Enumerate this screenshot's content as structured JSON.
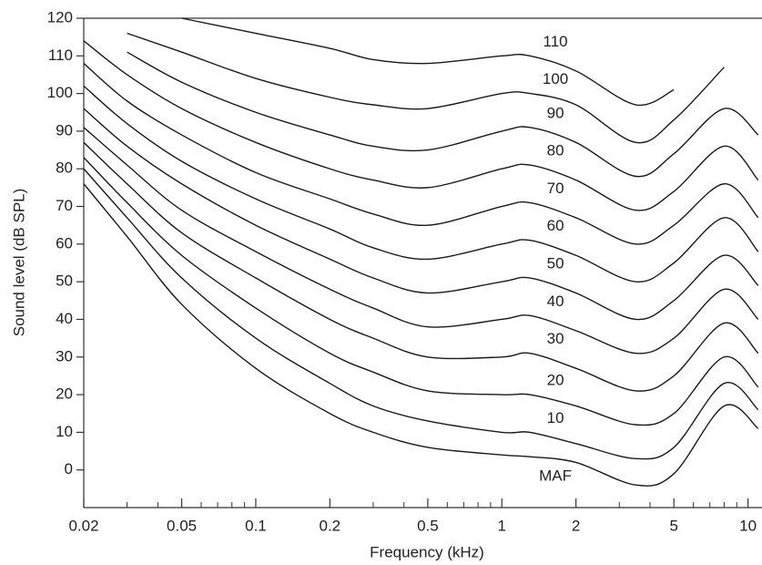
{
  "chart_data": {
    "type": "line",
    "xlabel": "Frequency (kHz)",
    "ylabel": "Sound level (dB SPL)",
    "x": [
      0.02,
      0.03,
      0.05,
      0.1,
      0.2,
      0.3,
      0.5,
      1,
      1.3,
      2,
      3.5,
      5,
      8,
      11
    ],
    "xscale": "log",
    "xlim": [
      0.02,
      11.4
    ],
    "xticks": [
      0.02,
      0.05,
      0.1,
      0.2,
      0.5,
      1,
      2,
      5,
      10
    ],
    "xminorticks": [
      0.03,
      0.04,
      0.06,
      0.07,
      0.08,
      0.09,
      0.3,
      0.4,
      0.6,
      0.7,
      0.8,
      0.9,
      3,
      4,
      6,
      7,
      8,
      9
    ],
    "ylim": [
      -10,
      120
    ],
    "yticks": [
      0,
      10,
      20,
      30,
      40,
      50,
      60,
      70,
      80,
      90,
      100,
      110,
      120
    ],
    "grid": false,
    "series": [
      {
        "name": "MAF",
        "color": "#1a1a1a",
        "values": [
          76,
          62,
          44,
          27,
          15,
          10,
          6,
          4,
          3.5,
          2,
          -4,
          -1,
          17,
          11
        ]
      },
      {
        "name": "10",
        "color": "#1a1a1a",
        "values": [
          80,
          67,
          51,
          35,
          23,
          17,
          13,
          10,
          10,
          7,
          3,
          6,
          23,
          16
        ]
      },
      {
        "name": "20",
        "color": "#1a1a1a",
        "values": [
          83,
          71,
          57,
          43,
          31,
          26,
          21,
          20,
          20,
          17,
          12,
          15,
          30,
          22
        ]
      },
      {
        "name": "30",
        "color": "#1a1a1a",
        "values": [
          87,
          76,
          63,
          51,
          40,
          35,
          30,
          30,
          31,
          27,
          21,
          25,
          39,
          31
        ]
      },
      {
        "name": "40",
        "color": "#1a1a1a",
        "values": [
          91,
          81,
          69,
          58,
          48,
          43,
          38,
          40,
          41,
          37,
          31,
          35,
          48,
          40
        ]
      },
      {
        "name": "50",
        "color": "#1a1a1a",
        "values": [
          96,
          86,
          76,
          65,
          56,
          51,
          47,
          50,
          51,
          47,
          40,
          45,
          57,
          49
        ]
      },
      {
        "name": "60",
        "color": "#1a1a1a",
        "values": [
          102,
          92,
          82,
          72,
          64,
          59,
          56,
          60,
          61,
          57,
          50,
          55,
          67,
          58
        ]
      },
      {
        "name": "70",
        "color": "#1a1a1a",
        "values": [
          108,
          98,
          89,
          79,
          72,
          68,
          65,
          70,
          71,
          67,
          60,
          65,
          76,
          67
        ]
      },
      {
        "name": "80",
        "color": "#1a1a1a",
        "values": [
          114,
          105,
          96,
          87,
          80,
          77,
          75,
          80,
          81,
          77,
          69,
          74,
          86,
          77
        ]
      },
      {
        "name": "90",
        "color": "#1a1a1a",
        "values": [
          null,
          111,
          103,
          95,
          89,
          86,
          85,
          90,
          91,
          87,
          78,
          84,
          96,
          89
        ]
      },
      {
        "name": "100",
        "color": "#1a1a1a",
        "values": [
          null,
          116,
          111,
          104,
          99,
          97,
          96,
          100,
          100,
          97,
          87,
          93,
          107,
          null
        ]
      },
      {
        "name": "110",
        "color": "#1a1a1a",
        "values": [
          null,
          null,
          120,
          116,
          112,
          109,
          108,
          110,
          110,
          106,
          97,
          101,
          null,
          null
        ]
      }
    ]
  }
}
